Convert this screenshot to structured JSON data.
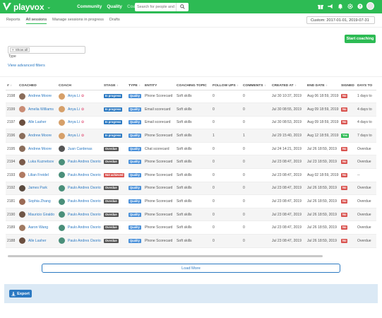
{
  "brand": {
    "name": "playvox",
    "color": "#2dbb54"
  },
  "nav": {
    "community": "Community",
    "quality": "Quality",
    "coaching": "Coaching"
  },
  "search": {
    "placeholder": "Search for people and s"
  },
  "tabs": [
    "Reports",
    "All sessions",
    "Manage sessions in progress",
    "Drafts"
  ],
  "date_range": "Custom: 2017-01-01, 2019-07-31",
  "start_coaching": "Start coaching",
  "type_filter": {
    "chip": "Show all",
    "label": "Type"
  },
  "advanced_filters": "View advanced filters",
  "table": {
    "headers": [
      "#",
      "COACHED",
      "COACH",
      "STAGE",
      "TYPE",
      "ENTITY",
      "COACHING TOPIC",
      "FOLLOW UPS",
      "COMMENTS",
      "CREATED AT",
      "END DATE",
      "SIGNED",
      "DAYS TO"
    ],
    "rows": [
      {
        "id": "2198",
        "coached": "Andrew Moore",
        "coach": "Anya Li",
        "stage": "In progress",
        "type": "Quality",
        "entity": "Phone Scorecard",
        "topic": "Soft skills",
        "follow_ups": "0",
        "comments": "0",
        "created": "Jul 30 10:37, 2019",
        "end": "Aug 06 18:59, 2019",
        "signed": "No",
        "days": "1 days to"
      },
      {
        "id": "2199",
        "coached": "Amelia Williams",
        "coach": "Anya Li",
        "stage": "In progress",
        "type": "Quality",
        "entity": "Email scorecard",
        "topic": "Soft skills",
        "follow_ups": "0",
        "comments": "0",
        "created": "Jul 30 08:55, 2019",
        "end": "Aug 09 18:59, 2019",
        "signed": "No",
        "days": "4 days to"
      },
      {
        "id": "2197",
        "coached": "Alle Lasher",
        "coach": "Anya Li",
        "stage": "In progress",
        "type": "Quality",
        "entity": "Email scorecard",
        "topic": "Soft skills",
        "follow_ups": "0",
        "comments": "0",
        "created": "Jul 30 08:53, 2019",
        "end": "Aug 09 18:59, 2019",
        "signed": "No",
        "days": "4 days to"
      },
      {
        "id": "2196",
        "coached": "Andrew Moore",
        "coach": "Anya Li",
        "stage": "In progress",
        "type": "Quality",
        "entity": "Phone Scorecard",
        "topic": "Soft skills",
        "follow_ups": "1",
        "comments": "1",
        "created": "Jul 29 15:40, 2019",
        "end": "Aug 12 18:59, 2019",
        "signed": "Yes",
        "days": "7 days to"
      },
      {
        "id": "2195",
        "coached": "Andrew Moore",
        "coach": "Juan Cardenas",
        "stage": "Overdue",
        "type": "Quality",
        "entity": "Chat scorecard",
        "topic": "Soft skills",
        "follow_ups": "0",
        "comments": "0",
        "created": "Jul 24 14:21, 2019",
        "end": "Jul 26 18:59, 2019",
        "signed": "No",
        "days": "Overdue"
      },
      {
        "id": "2194",
        "coached": "Luka Kuznetsov",
        "coach": "Paulo Andres Osorio",
        "stage": "Overdue",
        "type": "Quality",
        "entity": "Phone Scorecard",
        "topic": "Soft skills",
        "follow_ups": "0",
        "comments": "0",
        "created": "Jul 23 08:47, 2019",
        "end": "Jul 23 18:59, 2019",
        "signed": "No",
        "days": "Overdue"
      },
      {
        "id": "2193",
        "coached": "Lilian Freidel",
        "coach": "Paulo Andres Osorio",
        "stage": "Not achieved",
        "type": "Quality",
        "entity": "Phone Scorecard",
        "topic": "Soft skills",
        "follow_ups": "0",
        "comments": "0",
        "created": "Jul 23 08:47, 2019",
        "end": "Aug 02 18:59, 2019",
        "signed": "No",
        "days": "--"
      },
      {
        "id": "2192",
        "coached": "James Park",
        "coach": "Paulo Andres Osorio",
        "stage": "Overdue",
        "type": "Quality",
        "entity": "Phone Scorecard",
        "topic": "Soft skills",
        "follow_ups": "0",
        "comments": "0",
        "created": "Jul 23 08:47, 2019",
        "end": "Jul 26 18:59, 2019",
        "signed": "No",
        "days": "Overdue"
      },
      {
        "id": "2181",
        "coached": "Sophia Zhang",
        "coach": "Paulo Andres Osorio",
        "stage": "Overdue",
        "type": "Quality",
        "entity": "Phone Scorecard",
        "topic": "Soft skills",
        "follow_ups": "0",
        "comments": "0",
        "created": "Jul 23 08:47, 2019",
        "end": "Jul 26 18:59, 2019",
        "signed": "No",
        "days": "Overdue"
      },
      {
        "id": "2190",
        "coached": "Mauricio Giraldo",
        "coach": "Paulo Andres Osorio",
        "stage": "Overdue",
        "type": "Quality",
        "entity": "Phone Scorecard",
        "topic": "Soft skills",
        "follow_ups": "0",
        "comments": "0",
        "created": "Jul 23 08:47, 2019",
        "end": "Jul 26 18:59, 2019",
        "signed": "No",
        "days": "Overdue"
      },
      {
        "id": "2189",
        "coached": "Aaron Wang",
        "coach": "Paulo Andres Osorio",
        "stage": "Overdue",
        "type": "Quality",
        "entity": "Phone Scorecard",
        "topic": "Soft skills",
        "follow_ups": "0",
        "comments": "0",
        "created": "Jul 23 08:47, 2019",
        "end": "Jul 26 18:59, 2019",
        "signed": "No",
        "days": "Overdue"
      },
      {
        "id": "2188",
        "coached": "Alle Lasher",
        "coach": "Paulo Andres Osorio",
        "stage": "Overdue",
        "type": "Quality",
        "entity": "Phone Scorecard",
        "topic": "Soft skills",
        "follow_ups": "0",
        "comments": "0",
        "created": "Jul 23 08:47, 2019",
        "end": "Jul 26 18:59, 2019",
        "signed": "No",
        "days": "Overdue"
      }
    ]
  },
  "load_more": "Load More",
  "export": "Export"
}
